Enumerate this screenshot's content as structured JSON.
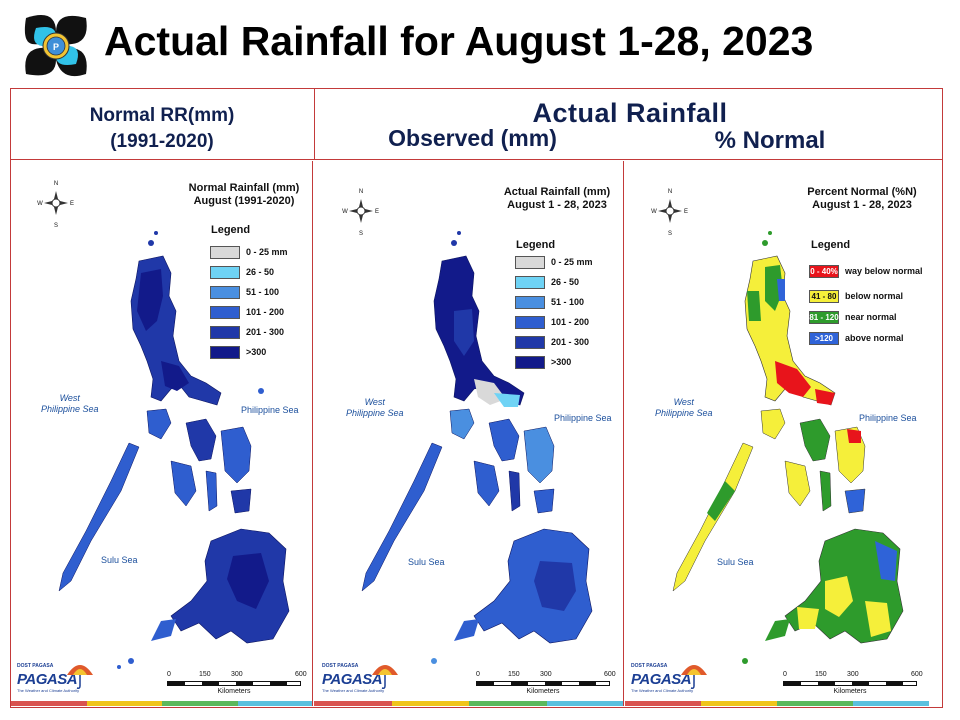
{
  "slide": {
    "title": "Actual Rainfall for August 1-28, 2023",
    "headers": {
      "normal_line1": "Normal RR(mm)",
      "normal_line2": "(1991-2020)",
      "actual": "Actual Rainfall",
      "observed": "Observed (mm)",
      "percent": "% Normal"
    }
  },
  "compass": {
    "n": "N",
    "s": "S",
    "e": "E",
    "w": "W"
  },
  "seas": {
    "west_line1": "West",
    "west_line2": "Philippine Sea",
    "philippine": "Philippine Sea",
    "sulu": "Sulu Sea"
  },
  "scale": {
    "t0": "0",
    "t1": "150",
    "t2": "300",
    "t3": "600",
    "unit": "Kilometers"
  },
  "branding": {
    "agency": "PAGASA",
    "small_text": "DOST PAGASA",
    "tagline": "The Weather and Climate Authority",
    "strip_colors": [
      "#d9534f",
      "#f0c419",
      "#5cb85c",
      "#5bc0de"
    ]
  },
  "panels": [
    {
      "map_title_line1": "Normal Rainfall (mm)",
      "map_title_line2": "August (1991-2020)",
      "legend_title": "Legend",
      "legend": [
        {
          "range": "0 - 25 mm",
          "color": "#d9d9d9"
        },
        {
          "range": "26 - 50",
          "color": "#6fd3f5"
        },
        {
          "range": "51 - 100",
          "color": "#4a8fe0"
        },
        {
          "range": "101 - 200",
          "color": "#2f5ecf"
        },
        {
          "range": "201 - 300",
          "color": "#2038a8"
        },
        {
          "range": ">300",
          "color": "#121a8a"
        }
      ]
    },
    {
      "map_title_line1": "Actual Rainfall (mm)",
      "map_title_line2": "August 1 - 28, 2023",
      "legend_title": "Legend",
      "legend": [
        {
          "range": "0 - 25 mm",
          "color": "#d9d9d9"
        },
        {
          "range": "26 - 50",
          "color": "#6fd3f5"
        },
        {
          "range": "51 - 100",
          "color": "#4a8fe0"
        },
        {
          "range": "101 - 200",
          "color": "#2f5ecf"
        },
        {
          "range": "201 - 300",
          "color": "#2038a8"
        },
        {
          "range": ">300",
          "color": "#121a8a"
        }
      ]
    },
    {
      "map_title_line1": "Percent Normal (%N)",
      "map_title_line2": "August 1 - 28, 2023",
      "legend_title": "Legend",
      "legend": [
        {
          "range": "0 - 40%",
          "label": "way below normal",
          "color": "#e8141b",
          "text_color": "#ffffff"
        },
        {
          "range": "41 - 80",
          "label": "below normal",
          "color": "#f5ef3a",
          "text_color": "#111111"
        },
        {
          "range": "81 - 120",
          "label": "near normal",
          "color": "#2e9b2c",
          "text_color": "#ffffff"
        },
        {
          "range": ">120",
          "label": "above normal",
          "color": "#2f63d8",
          "text_color": "#ffffff"
        }
      ]
    }
  ]
}
